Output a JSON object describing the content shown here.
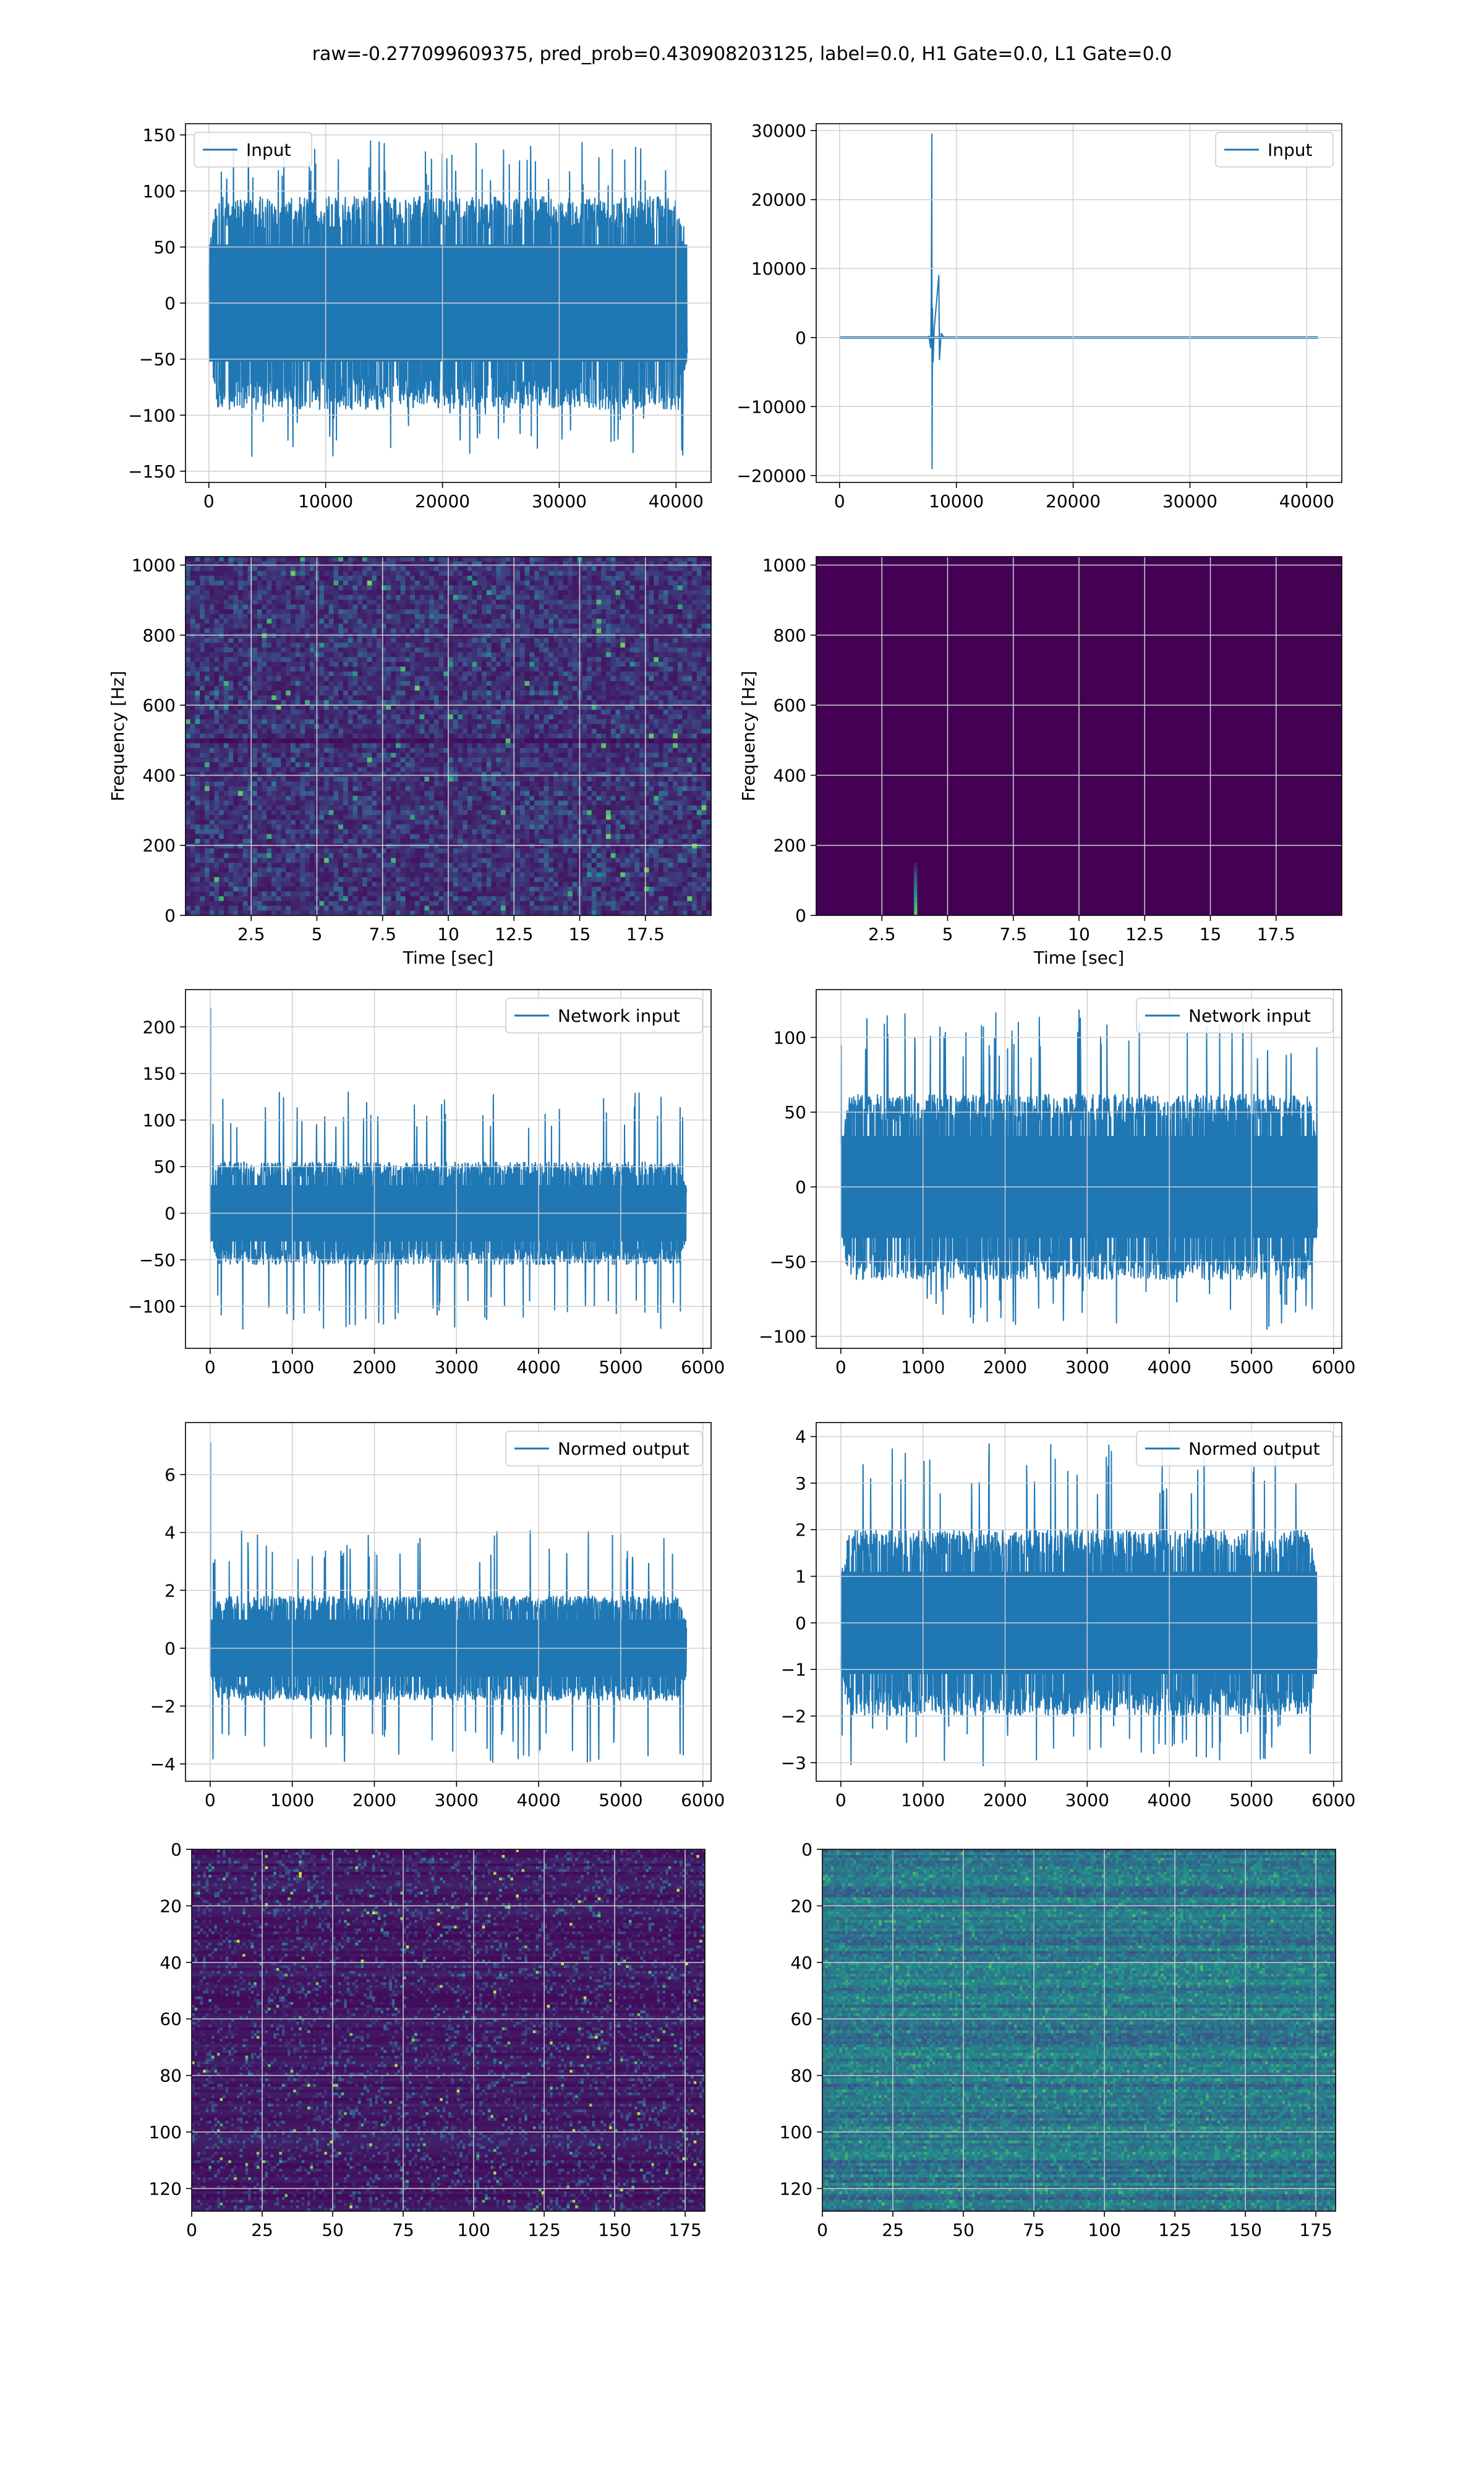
{
  "figure": {
    "title": "raw=-0.277099609375, pred_prob=0.430908203125, label=0.0, H1 Gate=0.0, L1 Gate=0.0"
  },
  "colors": {
    "line": "#1f77b4",
    "grid": "#d0d0d0",
    "viridis_low": "#440154",
    "viridis_mid": "#21918c",
    "viridis_high": "#fde725"
  },
  "chart_data": [
    {
      "id": "input-h1",
      "type": "line",
      "signal": "noise",
      "legend": "Input",
      "legend_loc": "upper left",
      "xlim": [
        -2000,
        43000
      ],
      "ylim": [
        -160,
        160
      ],
      "xticks": [
        0,
        10000,
        20000,
        30000,
        40000
      ],
      "yticks": [
        -150,
        -100,
        -50,
        0,
        50,
        100,
        150
      ],
      "x_range": [
        0,
        40960
      ],
      "envelope": 95,
      "spike_max": 145,
      "spike_min": -140,
      "grid": true,
      "xlabel": "",
      "ylabel": ""
    },
    {
      "id": "input-l1",
      "type": "line",
      "signal": "glitch",
      "legend": "Input",
      "legend_loc": "upper right",
      "xlim": [
        -2000,
        43000
      ],
      "ylim": [
        -21000,
        31000
      ],
      "xticks": [
        0,
        10000,
        20000,
        30000,
        40000
      ],
      "yticks": [
        -20000,
        -10000,
        0,
        10000,
        20000,
        30000
      ],
      "x_range": [
        0,
        40960
      ],
      "glitch_x": 7900,
      "glitch_peak": 29500,
      "glitch_trough": -19000,
      "secondary_peak_x": 8500,
      "secondary_peak": 9000,
      "grid": true,
      "xlabel": "",
      "ylabel": ""
    },
    {
      "id": "spectrogram-h1",
      "type": "heatmap",
      "pattern": "noise",
      "xlim": [
        0,
        20
      ],
      "ylim": [
        0,
        1024
      ],
      "xticks": [
        2.5,
        5.0,
        7.5,
        10.0,
        12.5,
        15.0,
        17.5
      ],
      "yticks": [
        0,
        200,
        400,
        600,
        800,
        1000
      ],
      "xlabel": "Time [sec]",
      "ylabel": "Frequency [Hz]",
      "grid": true
    },
    {
      "id": "spectrogram-l1",
      "type": "heatmap",
      "pattern": "glitch",
      "xlim": [
        0,
        20
      ],
      "ylim": [
        0,
        1024
      ],
      "xticks": [
        2.5,
        5.0,
        7.5,
        10.0,
        12.5,
        15.0,
        17.5
      ],
      "yticks": [
        0,
        200,
        400,
        600,
        800,
        1000
      ],
      "glitch_time": 3.8,
      "glitch_freq_max": 150,
      "xlabel": "Time [sec]",
      "ylabel": "Frequency [Hz]",
      "grid": true
    },
    {
      "id": "network-input-h1",
      "type": "line",
      "signal": "noise-spike",
      "legend": "Network input",
      "legend_loc": "upper right",
      "xlim": [
        -300,
        6100
      ],
      "ylim": [
        -145,
        240
      ],
      "xticks": [
        0,
        1000,
        2000,
        3000,
        4000,
        5000,
        6000
      ],
      "yticks": [
        -100,
        -50,
        0,
        50,
        100,
        150,
        200
      ],
      "x_range": [
        0,
        5800
      ],
      "envelope": 55,
      "spike_max": 130,
      "spike_min": -125,
      "first_spike": 220,
      "grid": true,
      "xlabel": "",
      "ylabel": ""
    },
    {
      "id": "network-input-l1",
      "type": "line",
      "signal": "noise",
      "legend": "Network input",
      "legend_loc": "upper right",
      "xlim": [
        -300,
        6100
      ],
      "ylim": [
        -108,
        132
      ],
      "xticks": [
        0,
        1000,
        2000,
        3000,
        4000,
        5000,
        6000
      ],
      "yticks": [
        -100,
        -50,
        0,
        50,
        100
      ],
      "x_range": [
        0,
        5800
      ],
      "envelope": 62,
      "spike_max": 120,
      "spike_min": -97,
      "grid": true,
      "xlabel": "",
      "ylabel": ""
    },
    {
      "id": "normed-output-h1",
      "type": "line",
      "signal": "noise-spike",
      "legend": "Normed output",
      "legend_loc": "upper right",
      "xlim": [
        -300,
        6100
      ],
      "ylim": [
        -4.6,
        7.8
      ],
      "xticks": [
        0,
        1000,
        2000,
        3000,
        4000,
        5000,
        6000
      ],
      "yticks": [
        -4,
        -2,
        0,
        2,
        4,
        6
      ],
      "x_range": [
        0,
        5800
      ],
      "envelope": 1.8,
      "spike_max": 4.1,
      "spike_min": -4.0,
      "first_spike": 7.1,
      "grid": true,
      "xlabel": "",
      "ylabel": ""
    },
    {
      "id": "normed-output-l1",
      "type": "line",
      "signal": "noise",
      "legend": "Normed output",
      "legend_loc": "upper right",
      "xlim": [
        -300,
        6100
      ],
      "ylim": [
        -3.4,
        4.3
      ],
      "xticks": [
        0,
        1000,
        2000,
        3000,
        4000,
        5000,
        6000
      ],
      "yticks": [
        -3,
        -2,
        -1,
        0,
        1,
        2,
        3,
        4
      ],
      "x_range": [
        0,
        5800
      ],
      "envelope": 2.0,
      "spike_max": 3.9,
      "spike_min": -3.1,
      "grid": true,
      "xlabel": "",
      "ylabel": ""
    },
    {
      "id": "feature-map-h1",
      "type": "heatmap",
      "pattern": "sparse",
      "xlim": [
        0,
        182
      ],
      "ylim": [
        128,
        0
      ],
      "xticks": [
        0,
        25,
        50,
        75,
        100,
        125,
        150,
        175
      ],
      "yticks": [
        0,
        20,
        40,
        60,
        80,
        100,
        120
      ],
      "grid": true,
      "xlabel": "",
      "ylabel": ""
    },
    {
      "id": "feature-map-l1",
      "type": "heatmap",
      "pattern": "dense",
      "xlim": [
        0,
        182
      ],
      "ylim": [
        128,
        0
      ],
      "xticks": [
        0,
        25,
        50,
        75,
        100,
        125,
        150,
        175
      ],
      "yticks": [
        0,
        20,
        40,
        60,
        80,
        100,
        120
      ],
      "grid": true,
      "xlabel": "",
      "ylabel": ""
    }
  ]
}
